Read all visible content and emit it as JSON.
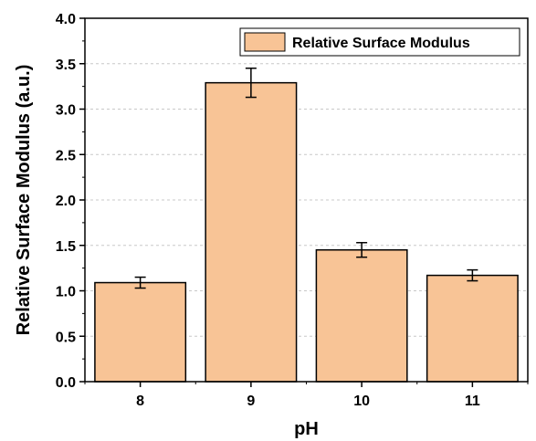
{
  "chart_data": {
    "type": "bar",
    "title": "",
    "xlabel": "pH",
    "ylabel": "Relative Surface Modulus (a.u.)",
    "categories": [
      "8",
      "9",
      "10",
      "11"
    ],
    "series": [
      {
        "name": "Relative Surface Modulus",
        "values": [
          1.09,
          3.29,
          1.45,
          1.17
        ],
        "errors": [
          0.06,
          0.16,
          0.08,
          0.06
        ],
        "color": "#F8C496"
      }
    ],
    "ylim": [
      0,
      4.0
    ],
    "yticks": [
      "0.0",
      "0.5",
      "1.0",
      "1.5",
      "2.0",
      "2.5",
      "3.0",
      "3.5",
      "4.0"
    ],
    "grid": "horizontal dashed",
    "legend_position": "top-right"
  }
}
